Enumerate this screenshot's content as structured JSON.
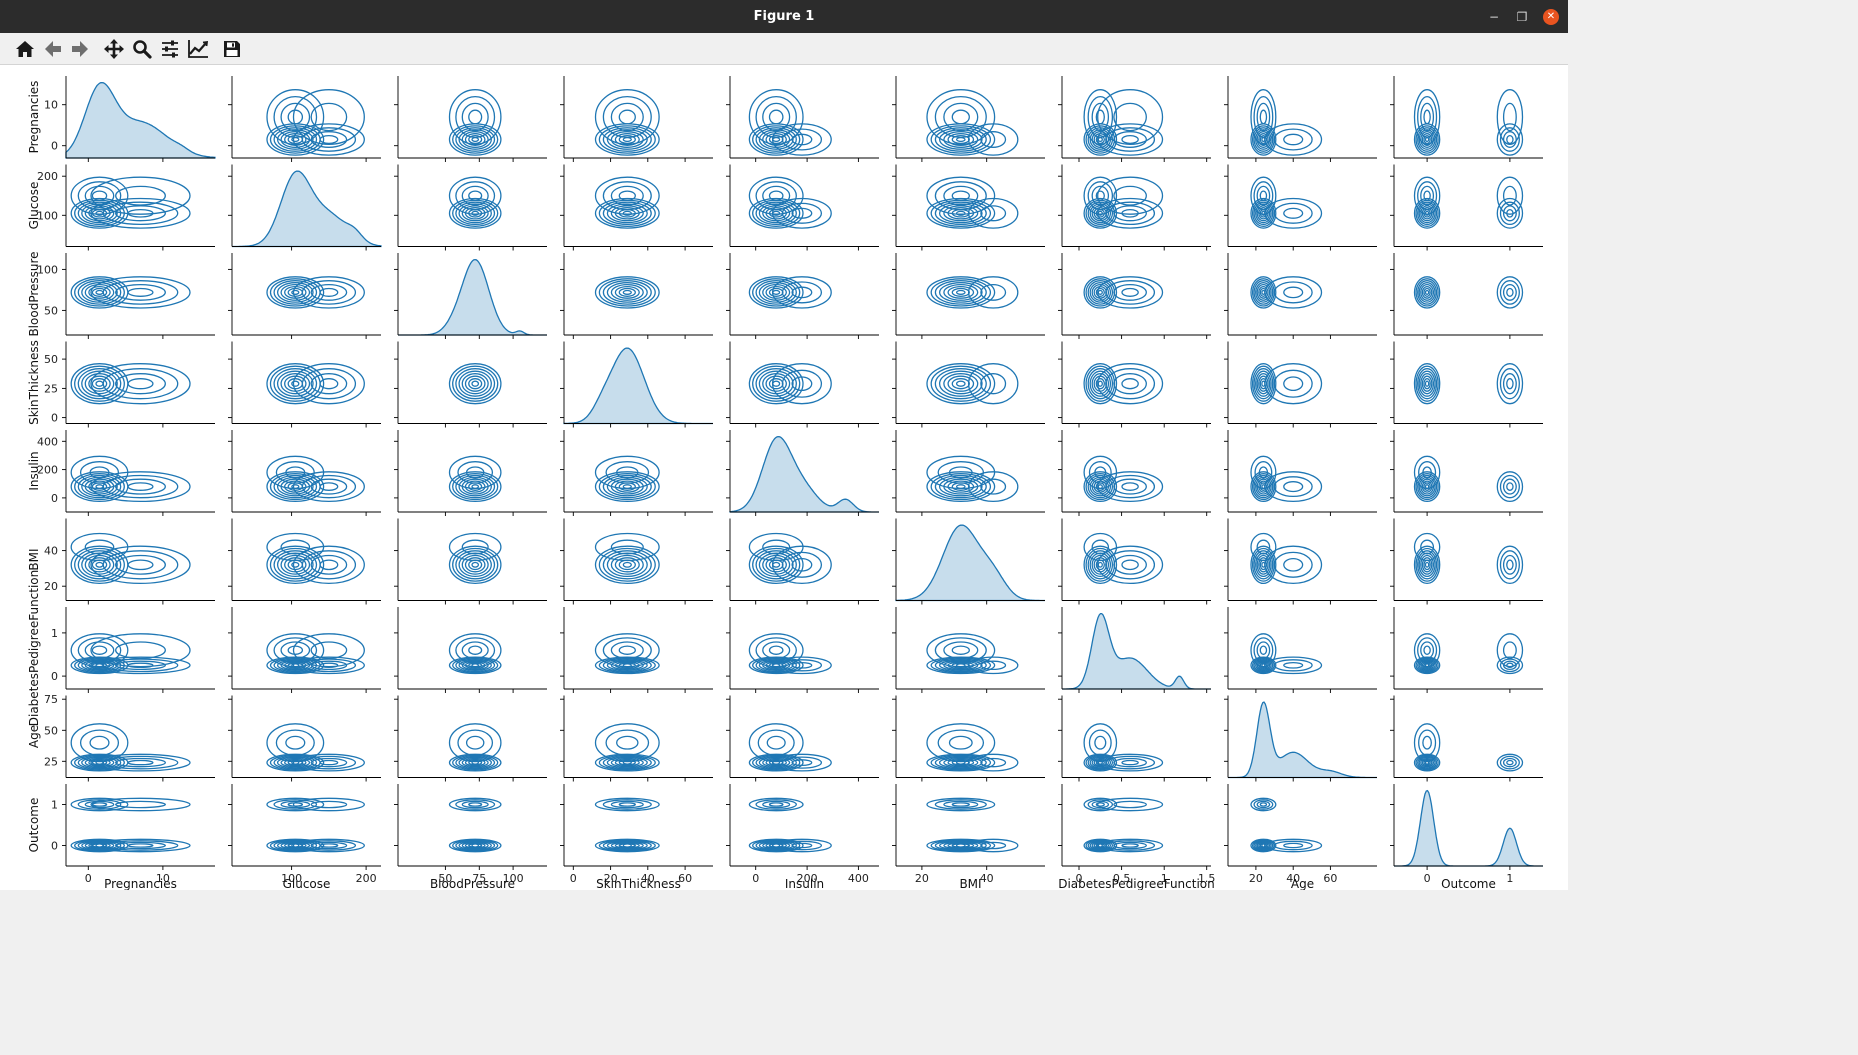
{
  "window": {
    "title": "Figure 1",
    "controls": {
      "minimize": "−",
      "restore": "❐",
      "close": "✕"
    }
  },
  "toolbar": {
    "buttons": [
      {
        "name": "home-button",
        "icon": "home-icon"
      },
      {
        "name": "back-button",
        "icon": "arrow-left-icon"
      },
      {
        "name": "forward-button",
        "icon": "arrow-right-icon"
      },
      {
        "name": "pan-button",
        "icon": "move-icon"
      },
      {
        "name": "zoom-button",
        "icon": "magnifier-icon"
      },
      {
        "name": "configure-subplots-button",
        "icon": "sliders-icon"
      },
      {
        "name": "edit-axes-button",
        "icon": "line-chart-icon"
      },
      {
        "name": "save-button",
        "icon": "floppy-disk-icon"
      }
    ]
  },
  "chart_data": {
    "type": "kde-pairplot",
    "color": "#1f77b4",
    "diagonal": "filled univariate kde",
    "offdiagonal": "bivariate kde contours",
    "variables": [
      {
        "name": "Pregnancies",
        "range": [
          -3,
          17
        ],
        "ticks": [
          0,
          10
        ],
        "ylim": [
          -3,
          17
        ],
        "yticks": [
          0,
          10
        ],
        "dist": [
          [
            1.5,
            2.0,
            1.0
          ],
          [
            7.0,
            3.5,
            0.55
          ],
          [
            12.5,
            1.0,
            0.04
          ]
        ]
      },
      {
        "name": "Glucose",
        "range": [
          20,
          220
        ],
        "ticks": [
          100,
          200
        ],
        "ylim": [
          20,
          230
        ],
        "yticks": [
          100,
          200
        ],
        "dist": [
          [
            105,
            20,
            1.0
          ],
          [
            150,
            25,
            0.45
          ],
          [
            185,
            10,
            0.1
          ]
        ]
      },
      {
        "name": "BloodPressure",
        "range": [
          15,
          125
        ],
        "ticks": [
          50,
          75,
          100
        ],
        "ylim": [
          20,
          120
        ],
        "yticks": [
          50,
          100
        ],
        "dist": [
          [
            72,
            10,
            1.0
          ],
          [
            55,
            7,
            0.06
          ],
          [
            105,
            3,
            0.05
          ]
        ]
      },
      {
        "name": "SkinThickness",
        "range": [
          -5,
          75
        ],
        "ticks": [
          0,
          20,
          40,
          60
        ],
        "ylim": [
          -5,
          65
        ],
        "yticks": [
          0,
          25,
          50
        ],
        "dist": [
          [
            29,
            9,
            1.0
          ],
          [
            15,
            5,
            0.12
          ]
        ]
      },
      {
        "name": "Insulin",
        "range": [
          -100,
          480
        ],
        "ticks": [
          0,
          200,
          400
        ],
        "ylim": [
          -100,
          480
        ],
        "yticks": [
          0,
          200,
          400
        ],
        "dist": [
          [
            80,
            55,
            1.0
          ],
          [
            180,
            60,
            0.35
          ],
          [
            350,
            30,
            0.18
          ]
        ]
      },
      {
        "name": "BMI",
        "range": [
          12,
          58
        ],
        "ticks": [
          20,
          40
        ],
        "ylim": [
          12,
          58
        ],
        "yticks": [
          20,
          40
        ],
        "dist": [
          [
            32,
            5.5,
            1.0
          ],
          [
            42,
            4,
            0.3
          ]
        ]
      },
      {
        "name": "DiabetesPedigreeFunction",
        "range": [
          -0.2,
          1.55
        ],
        "ticks": [
          0.0,
          0.5,
          1.0,
          1.5
        ],
        "ylim": [
          -0.3,
          1.6
        ],
        "yticks": [
          0,
          1
        ],
        "dist": [
          [
            0.25,
            0.1,
            1.0
          ],
          [
            0.6,
            0.2,
            0.45
          ],
          [
            1.18,
            0.05,
            0.18
          ]
        ]
      },
      {
        "name": "Age",
        "range": [
          5,
          85
        ],
        "ticks": [
          20,
          40,
          60
        ],
        "ylim": [
          12,
          78
        ],
        "yticks": [
          25,
          50,
          75
        ],
        "dist": [
          [
            24,
            3.5,
            1.0
          ],
          [
            40,
            8,
            0.35
          ],
          [
            60,
            6,
            0.08
          ]
        ]
      },
      {
        "name": "Outcome",
        "range": [
          -0.4,
          1.4
        ],
        "ticks": [
          0,
          1
        ],
        "ylim": [
          -0.5,
          1.5
        ],
        "yticks": [
          0,
          1
        ],
        "dist": [
          [
            0,
            0.08,
            1.0
          ],
          [
            1,
            0.08,
            0.5
          ]
        ]
      }
    ]
  }
}
